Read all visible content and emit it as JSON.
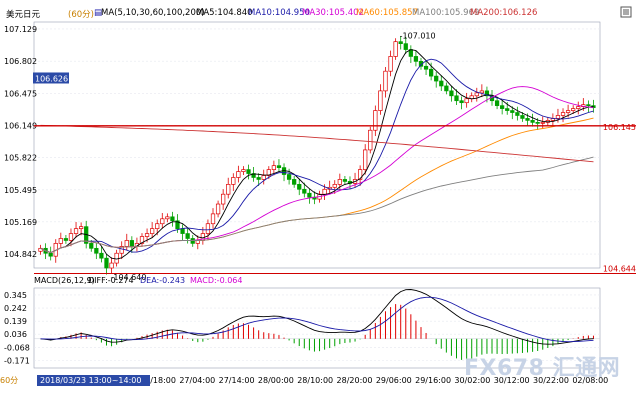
{
  "header": {
    "symbol": "美元日元",
    "period": "(60分)",
    "ma_params": "MA(5,10,30,60,100,200)",
    "ma5": "MA5:104.840",
    "ma10": "MA10:104.950",
    "ma30": "MA30:105.402",
    "ma60": "MA60:105.857",
    "ma100": "MA100:105.969",
    "ma200": "MA200:106.126"
  },
  "macd": {
    "params": "MACD(26,12,9)",
    "diff": "DIFF:-0.274",
    "dea": "DEA:-0.243",
    "macd": "MACD:-0.064"
  },
  "footer": {
    "period": "60分",
    "cursor_time": "2018/03/23 13:00~14:00 五"
  },
  "watermark": {
    "text": "FX678 汇通网"
  },
  "colors": {
    "up": "#e00000",
    "down": "#00a000",
    "ma5": "#000000",
    "ma10": "#1a1aa8",
    "ma30": "#d400d4",
    "ma60": "#ff8a00",
    "ma100": "#808080",
    "ma200": "#cc3333",
    "hline": "#d00000",
    "current_price_bg": "#2b4aa7"
  },
  "chart_data": {
    "type": "candlestick",
    "y_ticks": [
      "107.129",
      "106.802",
      "106.475",
      "106.149",
      "105.822",
      "105.495",
      "105.169",
      "104.842"
    ],
    "ylim": [
      104.7,
      107.2
    ],
    "x_ticks": [
      "26/18:00",
      "27/04:00",
      "27/14:00",
      "28/00:00",
      "28/10:00",
      "28/20:00",
      "29/06:00",
      "29/16:00",
      "30/02:00",
      "30/12:00",
      "30/22:00",
      "02/08:00"
    ],
    "current_price_label": "106.626",
    "current_price": 106.626,
    "high_annotation": "107.010",
    "high_value": 107.01,
    "low_annotation": "104.640",
    "low_value": 104.64,
    "hline_value_upper": "106.145",
    "hline_upper": 106.145,
    "hline_value_lower": "104.644",
    "hline_lower": 104.644,
    "closes": [
      104.9,
      104.85,
      104.82,
      104.95,
      105.0,
      104.98,
      105.05,
      105.1,
      105.12,
      104.95,
      104.9,
      104.85,
      104.8,
      104.7,
      104.75,
      104.85,
      104.92,
      104.98,
      104.92,
      104.95,
      105.02,
      105.05,
      105.1,
      105.15,
      105.2,
      105.22,
      105.18,
      105.1,
      105.05,
      105.0,
      104.95,
      104.98,
      105.05,
      105.15,
      105.25,
      105.35,
      105.45,
      105.55,
      105.62,
      105.68,
      105.7,
      105.66,
      105.62,
      105.6,
      105.64,
      105.7,
      105.74,
      105.72,
      105.65,
      105.6,
      105.55,
      105.5,
      105.46,
      105.42,
      105.4,
      105.45,
      105.5,
      105.52,
      105.55,
      105.6,
      105.58,
      105.56,
      105.6,
      105.7,
      105.9,
      106.1,
      106.3,
      106.5,
      106.7,
      106.85,
      107.0,
      106.98,
      106.92,
      106.85,
      106.8,
      106.75,
      106.72,
      106.65,
      106.6,
      106.55,
      106.5,
      106.45,
      106.4,
      106.38,
      106.42,
      106.45,
      106.48,
      106.5,
      106.45,
      106.4,
      106.35,
      106.32,
      106.3,
      106.28,
      106.25,
      106.22,
      106.2,
      106.18,
      106.17,
      106.18,
      106.2,
      106.22,
      106.25,
      106.28,
      106.3,
      106.32,
      106.34,
      106.36,
      106.35,
      106.33
    ],
    "macd_ticks": [
      "0.345",
      "0.242",
      "0.139",
      "0.036",
      "-0.068",
      "-0.171"
    ],
    "macd_ylim": [
      -0.23,
      0.4
    ]
  }
}
